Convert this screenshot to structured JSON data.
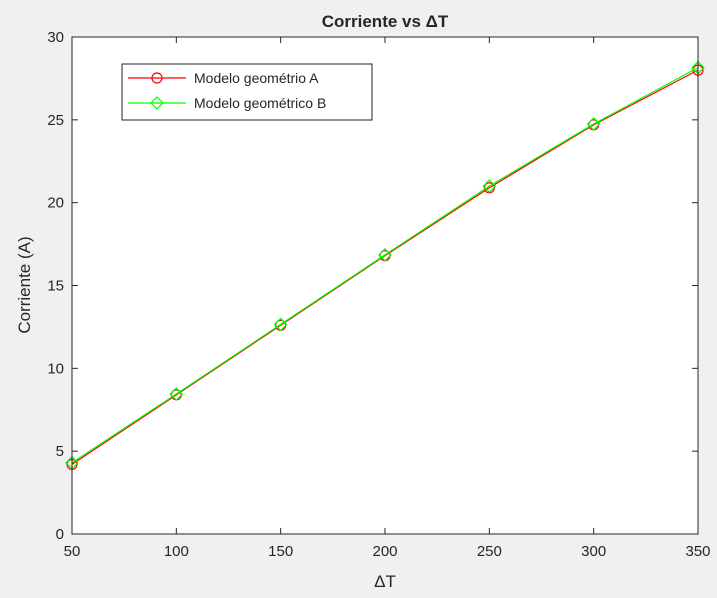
{
  "chart_data": {
    "type": "line",
    "title": "Corriente vs ΔT",
    "xlabel": "ΔT",
    "ylabel": "Corriente (A)",
    "xlim": [
      50,
      350
    ],
    "ylim": [
      0,
      30
    ],
    "xticks": [
      50,
      100,
      150,
      200,
      250,
      300,
      350
    ],
    "yticks": [
      0,
      5,
      10,
      15,
      20,
      25,
      30
    ],
    "grid": false,
    "legend_position": "top-left",
    "x": [
      50,
      100,
      150,
      200,
      250,
      300,
      350
    ],
    "series": [
      {
        "name": "Modelo geométrio A",
        "values": [
          4.2,
          8.4,
          12.6,
          16.8,
          20.9,
          24.7,
          28.0
        ],
        "color": "#ff0000",
        "marker": "circle"
      },
      {
        "name": "Modelo geométrico B",
        "values": [
          4.3,
          8.45,
          12.65,
          16.85,
          21.0,
          24.75,
          28.15
        ],
        "color": "#00ff00",
        "marker": "diamond"
      }
    ],
    "colors": {
      "axes": "#262626",
      "plot_bg": "#ffffff",
      "figure_bg": "#f0f0f0"
    }
  }
}
